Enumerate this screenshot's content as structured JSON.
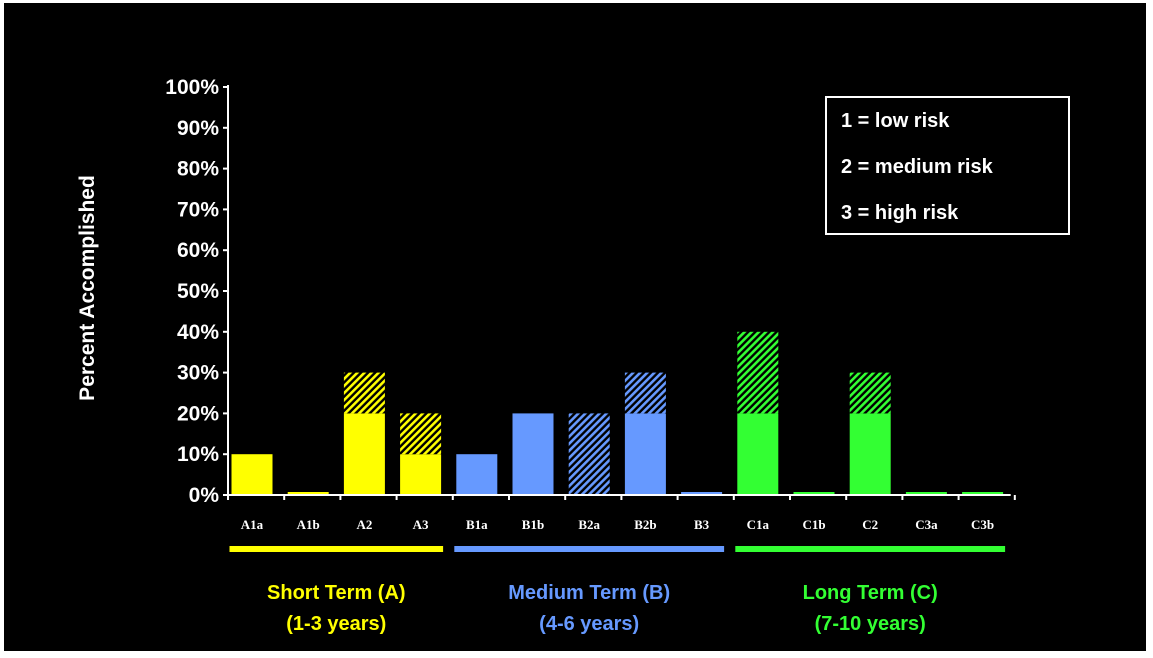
{
  "chart_data": {
    "type": "bar",
    "ylabel": "Percent Accomplished",
    "ylim": [
      0,
      100
    ],
    "yticks": [
      "0%",
      "10%",
      "20%",
      "30%",
      "40%",
      "50%",
      "60%",
      "70%",
      "80%",
      "90%",
      "100%"
    ],
    "categories": [
      "A1a",
      "A1b",
      "A2",
      "A3",
      "B1a",
      "B1b",
      "B2a",
      "B2b",
      "B3",
      "C1a",
      "C1b",
      "C2",
      "C3a",
      "C3b"
    ],
    "series": [
      {
        "pattern": "solid",
        "values": [
          10,
          0,
          20,
          10,
          10,
          20,
          0,
          20,
          0,
          20,
          0,
          20,
          0,
          0
        ]
      },
      {
        "pattern": "hatched",
        "values": [
          0,
          0,
          10,
          10,
          0,
          0,
          20,
          10,
          0,
          20,
          0,
          10,
          0,
          0
        ]
      }
    ],
    "groups": [
      {
        "line1": "Short Term (A)",
        "line2": "(1-3 years)",
        "color": "#ffff00",
        "categories": [
          "A1a",
          "A1b",
          "A2",
          "A3"
        ]
      },
      {
        "line1": "Medium Term (B)",
        "line2": "(4-6 years)",
        "color": "#6699ff",
        "categories": [
          "B1a",
          "B1b",
          "B2a",
          "B2b",
          "B3"
        ]
      },
      {
        "line1": "Long Term (C)",
        "line2": "(7-10 years)",
        "color": "#33ff33",
        "categories": [
          "C1a",
          "C1b",
          "C2",
          "C3a",
          "C3b"
        ]
      }
    ],
    "legend": {
      "position": "top-right",
      "items": [
        "1 = low risk",
        "2 = medium risk",
        "3 = high risk"
      ]
    },
    "grid": false
  }
}
